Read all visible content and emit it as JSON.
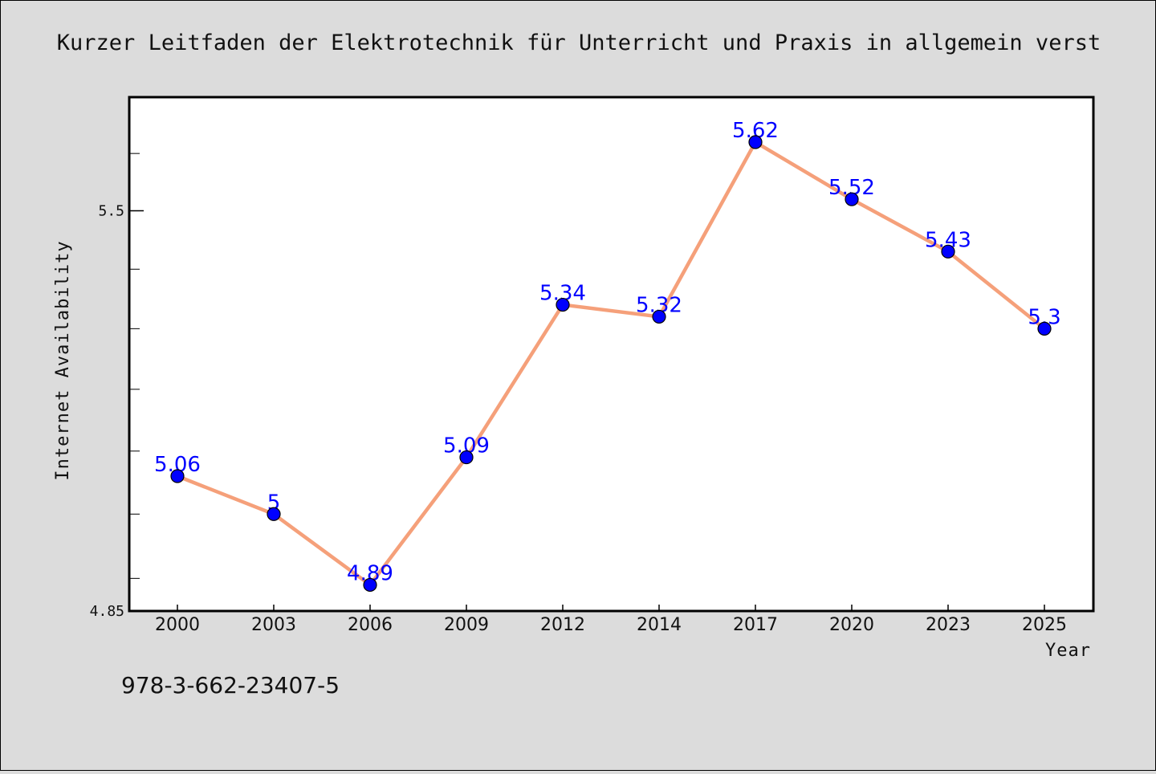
{
  "chart_data": {
    "type": "line",
    "title": "Kurzer Leitfaden der Elektrotechnik für Unterricht und Praxis in allgemein verst",
    "xlabel": "Year",
    "ylabel": "Internet Availability",
    "categories": [
      "2000",
      "2003",
      "2006",
      "2009",
      "2012",
      "2014",
      "2017",
      "2020",
      "2023",
      "2025"
    ],
    "series": [
      {
        "values": [
          5.06,
          5,
          4.89,
          5.09,
          5.34,
          5.32,
          5.62,
          5.52,
          5.43,
          5.3
        ]
      }
    ],
    "data_labels": [
      "5.06",
      "5",
      "4.89",
      "5.09",
      "5.34",
      "5.32",
      "5.62",
      "5.52",
      "5.43",
      "5.3"
    ],
    "y_tick_labels": [
      {
        "value": 4.85,
        "label": "4.85"
      },
      {
        "value": 5.5,
        "label": "5.5"
      }
    ],
    "ylim": [
      4.85,
      5.7
    ],
    "grid": false,
    "legend": "none",
    "line_color": "#f5a07a",
    "marker_color": "#0000ff",
    "label_color": "#0000ff",
    "plot_background": "#ffffff",
    "page_background": "#dcdcdc"
  },
  "footer": {
    "isbn": "978-3-662-23407-5"
  }
}
